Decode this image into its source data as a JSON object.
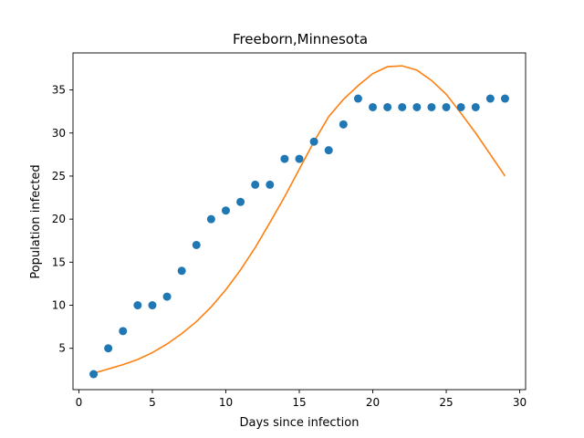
{
  "chart_data": {
    "type": "scatter",
    "title": "Freeborn,Minnesota",
    "xlabel": "Days since infection",
    "ylabel": "Population infected",
    "xlim": [
      -0.4,
      30.4
    ],
    "ylim": [
      0.2,
      39.3
    ],
    "xticks": [
      0,
      5,
      10,
      15,
      20,
      25,
      30
    ],
    "yticks": [
      5,
      10,
      15,
      20,
      25,
      30,
      35
    ],
    "grid": false,
    "series": [
      {
        "kind": "scatter",
        "color": "#1f77b4",
        "x": [
          1,
          2,
          3,
          4,
          5,
          6,
          7,
          8,
          9,
          10,
          11,
          12,
          13,
          14,
          15,
          16,
          17,
          18,
          19,
          20,
          21,
          22,
          23,
          24,
          25,
          26,
          27,
          28,
          29
        ],
        "y": [
          2,
          5,
          7,
          10,
          10,
          11,
          14,
          17,
          20,
          21,
          22,
          24,
          24,
          27,
          27,
          29,
          28,
          31,
          34,
          33,
          33,
          33,
          33,
          33,
          33,
          33,
          33,
          34,
          34
        ]
      },
      {
        "kind": "line",
        "color": "#ff7f0e",
        "x": [
          1,
          2,
          3,
          4,
          5,
          6,
          7,
          8,
          9,
          10,
          11,
          12,
          13,
          14,
          15,
          16,
          17,
          18,
          19,
          20,
          21,
          22,
          23,
          24,
          25,
          26,
          27,
          28,
          29
        ],
        "y": [
          2.1,
          2.6,
          3.1,
          3.7,
          4.5,
          5.5,
          6.7,
          8.1,
          9.8,
          11.8,
          14.1,
          16.7,
          19.6,
          22.6,
          25.8,
          29.0,
          31.9,
          33.9,
          35.5,
          36.9,
          37.7,
          37.8,
          37.3,
          36.1,
          34.5,
          32.3,
          30.0,
          27.5,
          25.0
        ]
      }
    ]
  }
}
